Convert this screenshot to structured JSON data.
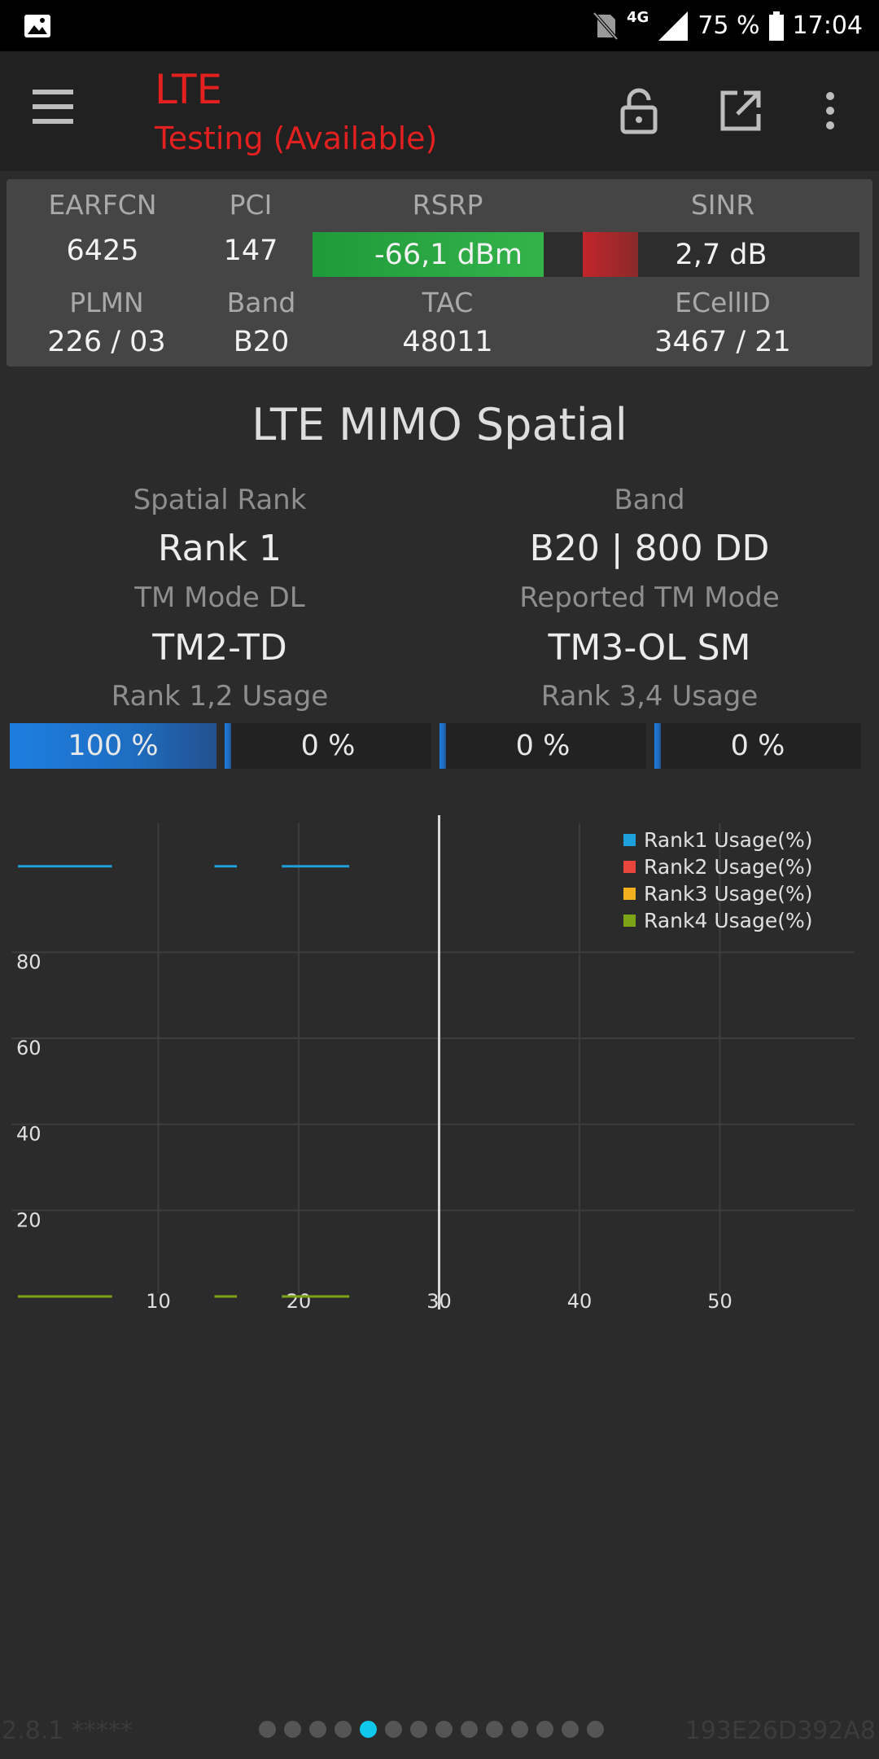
{
  "status_bar": {
    "battery": "75 %",
    "time": "17:04",
    "network": "4G"
  },
  "toolbar": {
    "title": "LTE",
    "subtitle": "Testing (Available)"
  },
  "cell_info": {
    "earfcn_label": "EARFCN",
    "earfcn": "6425",
    "pci_label": "PCI",
    "pci": "147",
    "rsrp_label": "RSRP",
    "rsrp": "-66,1 dBm",
    "rsrp_level": 0.85,
    "sinr_label": "SINR",
    "sinr": "2,7 dB",
    "sinr_level": 0.2,
    "plmn_label": "PLMN",
    "plmn": "226 / 03",
    "band_label": "Band",
    "band": "B20",
    "tac_label": "TAC",
    "tac": "48011",
    "ecellid_label": "ECellID",
    "ecellid": "3467 / 21"
  },
  "mimo": {
    "title": "LTE MIMO Spatial",
    "spatial_rank_label": "Spatial Rank",
    "spatial_rank": "Rank 1",
    "band_label": "Band",
    "band": "B20 | 800 DD",
    "tm_mode_dl_label": "TM Mode DL",
    "tm_mode_dl": "TM2-TD",
    "reported_tm_label": "Reported TM Mode",
    "reported_tm": "TM3-OL SM",
    "rank12_label": "Rank 1,2 Usage",
    "rank34_label": "Rank 3,4 Usage",
    "usage": [
      {
        "text": "100 %",
        "value": 100
      },
      {
        "text": "0 %",
        "value": 0
      },
      {
        "text": "0 %",
        "value": 0
      },
      {
        "text": "0 %",
        "value": 0
      }
    ]
  },
  "chart_data": {
    "type": "line",
    "xlim": [
      0,
      58
    ],
    "ylim": [
      0,
      100
    ],
    "x_ticks": [
      "10",
      "20",
      "30",
      "40",
      "50"
    ],
    "y_ticks": [
      "20",
      "40",
      "60",
      "80"
    ],
    "grid": true,
    "legend_position": "top-right",
    "cursor_x": 30,
    "series": [
      {
        "name": "Rank1 Usage(%)",
        "color": "#1ea0dc",
        "segments": [
          [
            [
              0,
              100
            ],
            [
              6.7,
              100
            ]
          ],
          [
            [
              14,
              100
            ],
            [
              15.6,
              100
            ]
          ],
          [
            [
              18.8,
              100
            ],
            [
              23.6,
              100
            ]
          ]
        ]
      },
      {
        "name": "Rank2 Usage(%)",
        "color": "#e8453c",
        "segments": []
      },
      {
        "name": "Rank3 Usage(%)",
        "color": "#f2b01e",
        "segments": []
      },
      {
        "name": "Rank4 Usage(%)",
        "color": "#7da417",
        "segments": [
          [
            [
              0,
              0
            ],
            [
              6.7,
              0
            ]
          ],
          [
            [
              14,
              0
            ],
            [
              15.6,
              0
            ]
          ],
          [
            [
              18.8,
              0
            ],
            [
              23.6,
              0
            ]
          ]
        ]
      }
    ]
  },
  "footer": {
    "version": "2.8.1 *****",
    "device_id": "193E26D392A8",
    "page_count": 14,
    "active_page": 5
  }
}
